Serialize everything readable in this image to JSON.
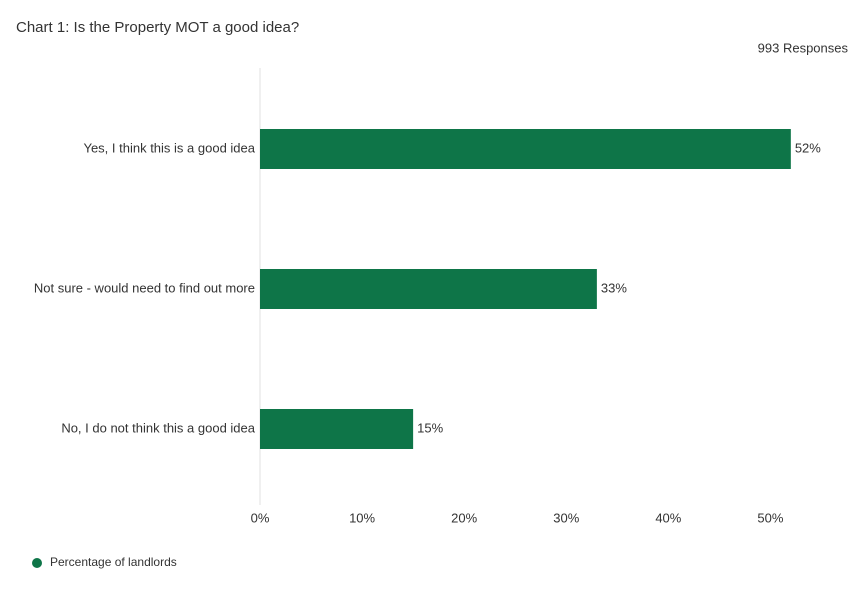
{
  "chart_data": {
    "type": "bar",
    "orientation": "horizontal",
    "title": "Chart 1: Is the Property MOT a good idea?",
    "subtitle": "993 Responses",
    "categories": [
      "Yes, I think this is a good idea",
      "Not sure - would need to find out more",
      "No, I do not think this a good idea"
    ],
    "series": [
      {
        "name": "Percentage of landlords",
        "color": "#0e7548",
        "values": [
          52,
          33,
          15
        ],
        "value_labels": [
          "52%",
          "33%",
          "15%"
        ]
      }
    ],
    "xlim": [
      0,
      57.6
    ],
    "xticks": [
      {
        "value": 0,
        "label": "0%"
      },
      {
        "value": 10,
        "label": "10%"
      },
      {
        "value": 20,
        "label": "20%"
      },
      {
        "value": 30,
        "label": "30%"
      },
      {
        "value": 40,
        "label": "40%"
      },
      {
        "value": 50,
        "label": "50%"
      }
    ],
    "legend": "bottom-left"
  }
}
